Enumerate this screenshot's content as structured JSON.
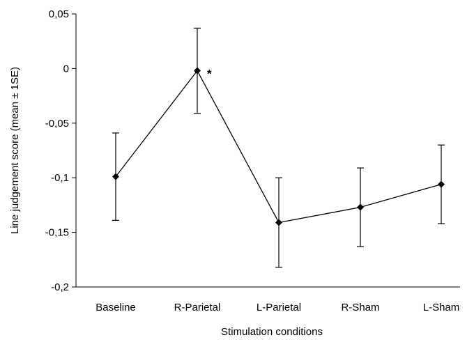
{
  "chart_data": {
    "type": "line",
    "title": "",
    "xlabel": "Stimulation conditions",
    "ylabel": "Line judgement score (mean ± 1SE)",
    "categories": [
      "Baseline",
      "R-Parietal",
      "L-Parietal",
      "R-Sham",
      "L-Sham"
    ],
    "series": [
      {
        "values": [
          -0.099,
          -0.002,
          -0.141,
          -0.127,
          -0.106
        ],
        "error": [
          0.04,
          0.039,
          0.041,
          0.036,
          0.036
        ],
        "annotations": [
          "",
          "*",
          "",
          "",
          ""
        ]
      }
    ],
    "ylim": [
      -0.2,
      0.05
    ],
    "yticks": [
      0.05,
      0,
      -0.05,
      -0.1,
      -0.15,
      -0.2
    ],
    "ytick_labels": [
      "0,05",
      "0",
      "-0,05",
      "-0,1",
      "-0,15",
      "-0,2"
    ],
    "grid": false,
    "legend": "none",
    "marker": "diamond",
    "color": "#000000"
  }
}
